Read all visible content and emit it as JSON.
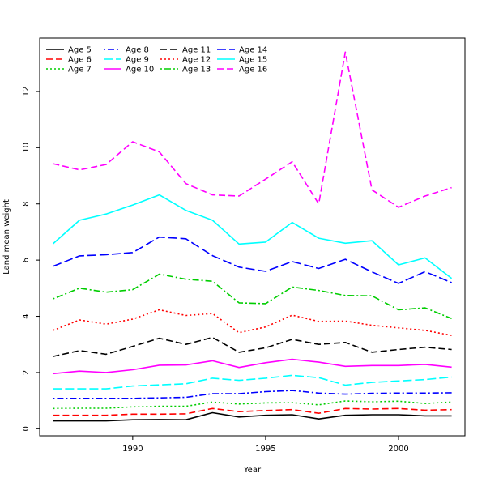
{
  "chart_data": {
    "type": "line",
    "title": "",
    "xlabel": "Year",
    "ylabel": "Land mean weight",
    "xlim": [
      1986.5,
      2002.5
    ],
    "ylim": [
      -0.25,
      13.9
    ],
    "x_ticks": [
      1990,
      1995,
      2000
    ],
    "y_ticks": [
      0,
      2,
      4,
      6,
      8,
      10,
      12
    ],
    "grid": false,
    "legend_position": "top-left",
    "x": [
      1987,
      1988,
      1989,
      1990,
      1991,
      1992,
      1993,
      1994,
      1995,
      1996,
      1997,
      1998,
      1999,
      2000,
      2001,
      2002
    ],
    "series": [
      {
        "name": "Age 5",
        "color": "#000000",
        "dash": "solid",
        "values": [
          0.28,
          0.28,
          0.28,
          0.32,
          0.33,
          0.32,
          0.57,
          0.42,
          0.48,
          0.5,
          0.35,
          0.48,
          0.5,
          0.5,
          0.46,
          0.46
        ]
      },
      {
        "name": "Age 6",
        "color": "#ff0000",
        "dash": "dashed",
        "values": [
          0.48,
          0.48,
          0.48,
          0.52,
          0.52,
          0.53,
          0.72,
          0.61,
          0.65,
          0.68,
          0.55,
          0.72,
          0.7,
          0.72,
          0.66,
          0.68
        ]
      },
      {
        "name": "Age 7",
        "color": "#00cd00",
        "dash": "dotted",
        "values": [
          0.72,
          0.73,
          0.73,
          0.78,
          0.8,
          0.8,
          0.95,
          0.88,
          0.92,
          0.93,
          0.85,
          0.99,
          0.96,
          0.98,
          0.9,
          0.95
        ]
      },
      {
        "name": "Age 8",
        "color": "#0000ff",
        "dash": "dotdash",
        "values": [
          1.08,
          1.08,
          1.08,
          1.08,
          1.1,
          1.12,
          1.25,
          1.25,
          1.32,
          1.36,
          1.27,
          1.23,
          1.26,
          1.27,
          1.27,
          1.28
        ]
      },
      {
        "name": "Age 9",
        "color": "#00ffff",
        "dash": "longdash",
        "values": [
          1.42,
          1.42,
          1.42,
          1.52,
          1.56,
          1.6,
          1.8,
          1.72,
          1.8,
          1.9,
          1.82,
          1.55,
          1.65,
          1.7,
          1.75,
          1.84
        ]
      },
      {
        "name": "Age 10",
        "color": "#ff00ff",
        "dash": "solid",
        "values": [
          1.96,
          2.05,
          2.0,
          2.1,
          2.26,
          2.27,
          2.42,
          2.18,
          2.35,
          2.47,
          2.37,
          2.22,
          2.25,
          2.25,
          2.29,
          2.19
        ]
      },
      {
        "name": "Age 11",
        "color": "#000000",
        "dash": "dashed",
        "values": [
          2.57,
          2.78,
          2.65,
          2.93,
          3.22,
          3.0,
          3.25,
          2.72,
          2.88,
          3.18,
          3.0,
          3.07,
          2.72,
          2.82,
          2.9,
          2.82
        ]
      },
      {
        "name": "Age 12",
        "color": "#ff0000",
        "dash": "dotted",
        "values": [
          3.5,
          3.87,
          3.72,
          3.9,
          4.23,
          4.03,
          4.1,
          3.42,
          3.62,
          4.04,
          3.82,
          3.83,
          3.68,
          3.59,
          3.5,
          3.32
        ]
      },
      {
        "name": "Age 13",
        "color": "#00cd00",
        "dash": "dotdash",
        "values": [
          4.62,
          5.0,
          4.86,
          4.95,
          5.5,
          5.32,
          5.25,
          4.48,
          4.45,
          5.04,
          4.92,
          4.74,
          4.73,
          4.23,
          4.3,
          3.92
        ]
      },
      {
        "name": "Age 14",
        "color": "#0000ff",
        "dash": "longdash",
        "values": [
          5.78,
          6.15,
          6.19,
          6.27,
          6.82,
          6.76,
          6.16,
          5.75,
          5.6,
          5.95,
          5.7,
          6.03,
          5.58,
          5.17,
          5.59,
          5.2
        ]
      },
      {
        "name": "Age 15",
        "color": "#00ffff",
        "dash": "solid",
        "values": [
          6.58,
          7.42,
          7.64,
          7.96,
          8.32,
          7.77,
          7.42,
          6.57,
          6.64,
          7.34,
          6.78,
          6.6,
          6.69,
          5.83,
          6.08,
          5.35
        ]
      },
      {
        "name": "Age 16",
        "color": "#ff00ff",
        "dash": "dashed",
        "values": [
          9.43,
          9.21,
          9.4,
          10.21,
          9.85,
          8.72,
          8.32,
          8.28,
          8.88,
          9.5,
          8.0,
          13.4,
          8.5,
          7.88,
          8.28,
          8.58
        ]
      }
    ]
  }
}
